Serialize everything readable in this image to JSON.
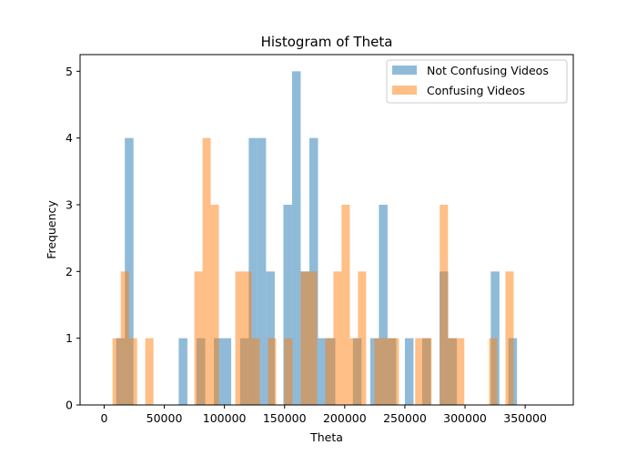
{
  "chart_data": {
    "type": "bar",
    "title": "Histogram of Theta",
    "xlabel": "Theta",
    "ylabel": "Frequency",
    "xlim": [
      -20000,
      390000
    ],
    "ylim": [
      0,
      5.25
    ],
    "xticks": [
      0,
      50000,
      100000,
      150000,
      200000,
      250000,
      300000,
      350000
    ],
    "xtick_labels": [
      "0",
      "50000",
      "100000",
      "150000",
      "200000",
      "250000",
      "300000",
      "350000"
    ],
    "yticks": [
      0,
      1,
      2,
      3,
      4,
      5
    ],
    "ytick_labels": [
      "0",
      "1",
      "2",
      "3",
      "4",
      "5"
    ],
    "grid": false,
    "legend_position": "top-right",
    "alpha": 0.5,
    "series": [
      {
        "name": "Not Confusing Videos",
        "color": "#1f77b4",
        "bins": [
          [
            10000,
            17200,
            1
          ],
          [
            17200,
            24400,
            4
          ],
          [
            62000,
            69200,
            1
          ],
          [
            76800,
            84000,
            1
          ],
          [
            91200,
            98400,
            1
          ],
          [
            98400,
            105600,
            1
          ],
          [
            113000,
            120200,
            1
          ],
          [
            120200,
            127400,
            4
          ],
          [
            127400,
            134600,
            4
          ],
          [
            134600,
            141800,
            2
          ],
          [
            149000,
            156200,
            3
          ],
          [
            156200,
            163400,
            5
          ],
          [
            163400,
            170600,
            2
          ],
          [
            170600,
            177800,
            4
          ],
          [
            177800,
            185000,
            1
          ],
          [
            185000,
            192200,
            1
          ],
          [
            206800,
            214000,
            1
          ],
          [
            221200,
            228400,
            1
          ],
          [
            228400,
            235600,
            3
          ],
          [
            235600,
            242800,
            1
          ],
          [
            250000,
            257200,
            1
          ],
          [
            264400,
            271600,
            1
          ],
          [
            278800,
            286000,
            2
          ],
          [
            286000,
            293200,
            1
          ],
          [
            321400,
            328600,
            2
          ],
          [
            336000,
            343200,
            1
          ]
        ]
      },
      {
        "name": "Confusing Videos",
        "color": "#ff7f0e",
        "bins": [
          [
            7000,
            13800,
            1
          ],
          [
            13800,
            20600,
            2
          ],
          [
            20600,
            27400,
            1
          ],
          [
            34200,
            41000,
            1
          ],
          [
            75000,
            81800,
            2
          ],
          [
            81800,
            88600,
            4
          ],
          [
            88600,
            95400,
            3
          ],
          [
            109000,
            115800,
            2
          ],
          [
            115800,
            122600,
            2
          ],
          [
            122600,
            129400,
            1
          ],
          [
            136200,
            143000,
            1
          ],
          [
            149800,
            156600,
            1
          ],
          [
            163400,
            170200,
            2
          ],
          [
            170200,
            177000,
            2
          ],
          [
            183800,
            190600,
            1
          ],
          [
            190600,
            197400,
            2
          ],
          [
            197400,
            204200,
            3
          ],
          [
            204200,
            211000,
            1
          ],
          [
            211000,
            217800,
            2
          ],
          [
            224600,
            231400,
            1
          ],
          [
            231400,
            238200,
            1
          ],
          [
            238200,
            245000,
            1
          ],
          [
            258600,
            265400,
            1
          ],
          [
            265400,
            272200,
            1
          ],
          [
            279000,
            285800,
            3
          ],
          [
            285800,
            292600,
            1
          ],
          [
            292600,
            299400,
            1
          ],
          [
            320000,
            326800,
            1
          ],
          [
            333600,
            340400,
            2
          ]
        ]
      }
    ]
  }
}
